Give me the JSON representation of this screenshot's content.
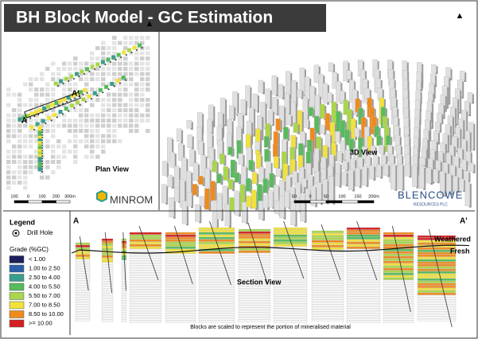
{
  "header": {
    "title": "BH Block Model - GC Estimation"
  },
  "plan_view": {
    "label": "Plan View",
    "section_start": "A",
    "section_end": "A'",
    "scale": [
      "100",
      "0",
      "100",
      "200",
      "300m"
    ],
    "logo": "MINROM"
  },
  "view_3d": {
    "label": "3D View",
    "scale": [
      "50",
      "0",
      "50",
      "100",
      "150",
      "200m"
    ],
    "logo": "BLENCOWE",
    "logo_sub": "RESOURCES PLC"
  },
  "legend": {
    "title": "Legend",
    "drill_hole": "Drill Hole",
    "grade_title": "Grade (%GC)",
    "items": [
      {
        "label": "< 1.00",
        "color": "#1c1f5c"
      },
      {
        "label": "1.00 to 2.50",
        "color": "#2a5fa8"
      },
      {
        "label": "2.50 to 4.00",
        "color": "#3a9e8c"
      },
      {
        "label": "4.00 to 5.50",
        "color": "#58bb5c"
      },
      {
        "label": "5.50 to 7.00",
        "color": "#a9d64a"
      },
      {
        "label": "7.00 to 8.50",
        "color": "#f1e23b"
      },
      {
        "label": "8.50 to 10.00",
        "color": "#ef8a1f"
      },
      {
        "label": ">= 10.00",
        "color": "#d42020"
      }
    ]
  },
  "section": {
    "label": "Section View",
    "start": "A",
    "end": "A'",
    "weathered": "Weathered",
    "fresh": "Fresh",
    "note": "Blocks are scaled to represent the portion of mineralised material"
  }
}
